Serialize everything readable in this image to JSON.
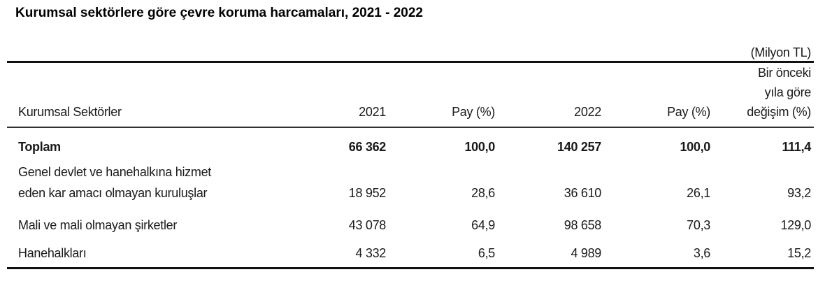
{
  "title": "Kurumsal sektörlere göre çevre koruma harcamaları, 2021 - 2022",
  "unit": "(Milyon TL)",
  "headers": {
    "sector": "Kurumsal Sektörler",
    "y2021": "2021",
    "pay2021": "Pay (%)",
    "y2022": "2022",
    "pay2022": "Pay (%)",
    "change_line1": "Bir önceki",
    "change_line2": "yıla göre",
    "change_line3": "değişim (%)"
  },
  "rows": [
    {
      "label": "Toplam",
      "v2021": "66 362",
      "p2021": "100,0",
      "v2022": "140 257",
      "p2022": "100,0",
      "change": "111,4"
    },
    {
      "label_line1": "Genel devlet ve hanehalkına hizmet",
      "label": "eden kar amacı olmayan kuruluşlar",
      "v2021": "18 952",
      "p2021": "28,6",
      "v2022": "36 610",
      "p2022": "26,1",
      "change": "93,2"
    },
    {
      "label": "Mali ve mali olmayan şirketler",
      "v2021": "43 078",
      "p2021": "64,9",
      "v2022": "98 658",
      "p2022": "70,3",
      "change": "129,0"
    },
    {
      "label": "Hanehalkları",
      "v2021": "4 332",
      "p2021": "6,5",
      "v2022": "4 989",
      "p2022": "3,6",
      "change": "15,2"
    }
  ]
}
